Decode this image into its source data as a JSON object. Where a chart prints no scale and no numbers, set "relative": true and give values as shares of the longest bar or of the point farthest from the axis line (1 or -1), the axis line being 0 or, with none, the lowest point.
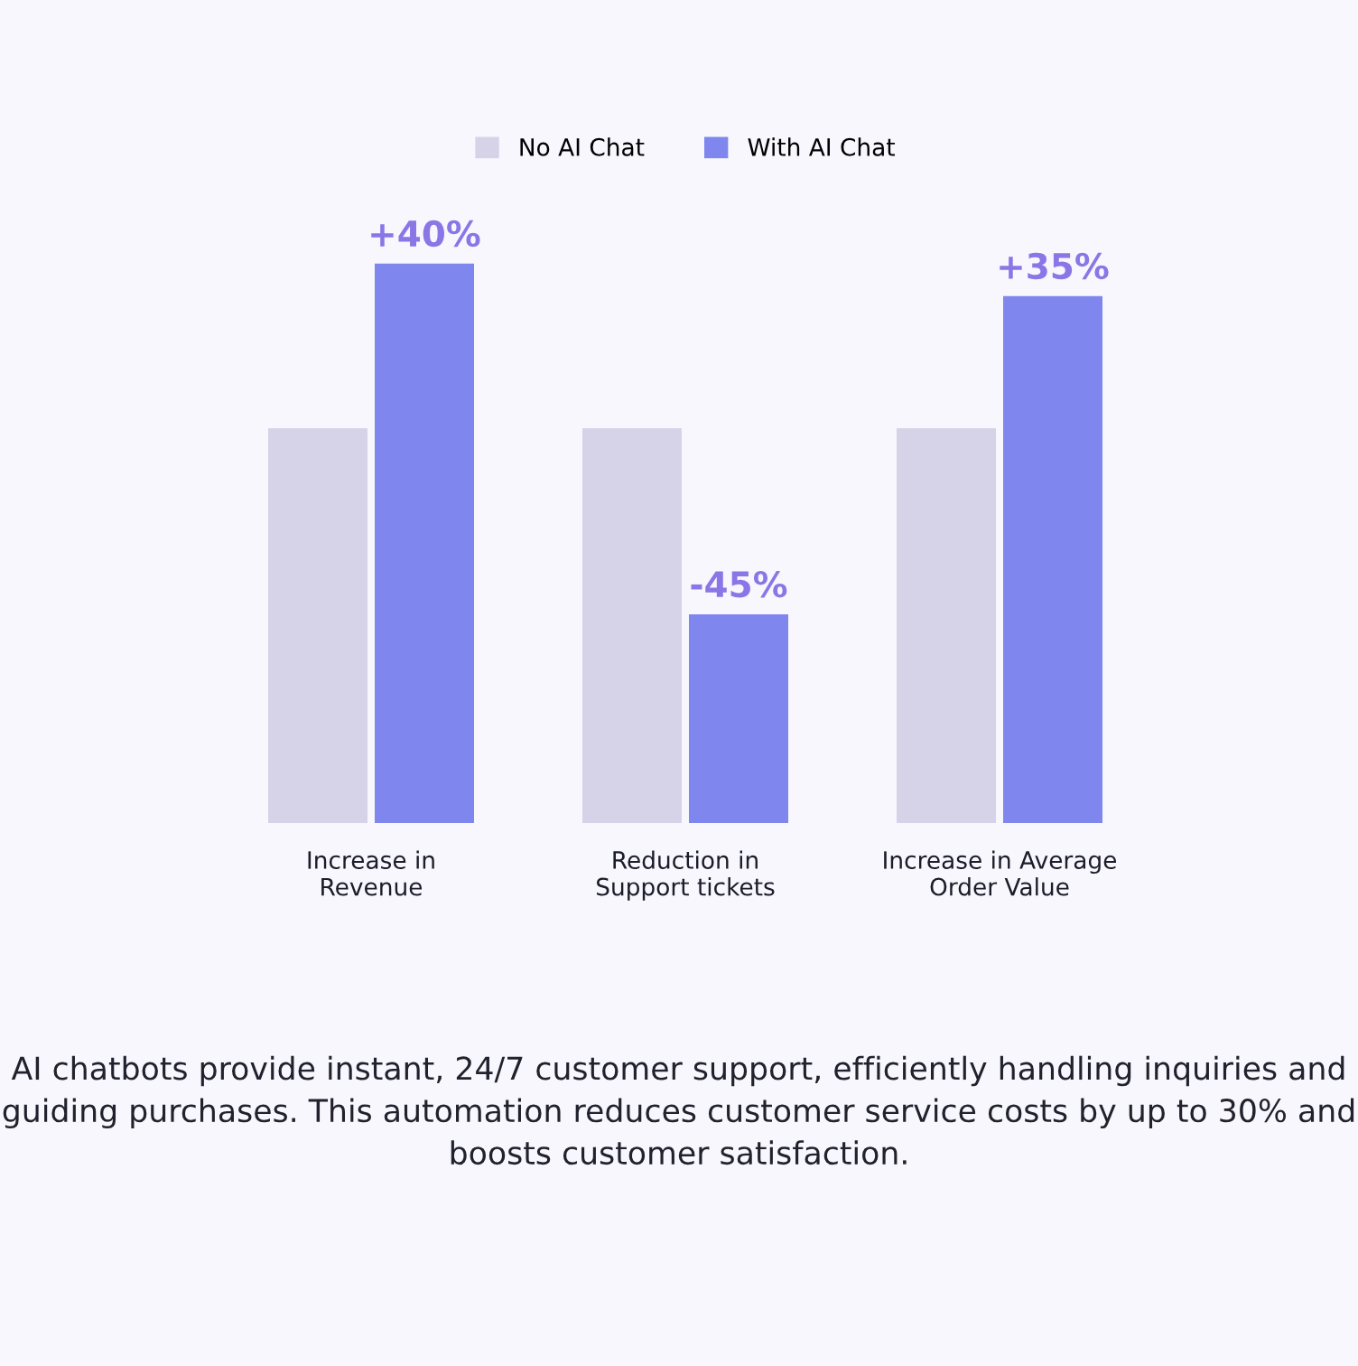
{
  "chart_data": {
    "type": "bar",
    "relative": true,
    "categories": [
      "Increase in\nRevenue",
      "Reduction in\nSupport tickets",
      "Increase in Average\nOrder Value"
    ],
    "series": [
      {
        "name": "No AI Chat",
        "color": "#d6d3e8",
        "values": [
          0.706,
          0.706,
          0.706
        ]
      },
      {
        "name": "With AI Chat",
        "color": "#7f86ee",
        "values": [
          1.0,
          0.373,
          0.942
        ]
      }
    ],
    "legend": "top",
    "annotations": [
      {
        "text": "+40%",
        "x": "Increase in\nRevenue",
        "y": 1.0
      },
      {
        "text": "-45%",
        "x": "Reduction in\nSupport tickets",
        "y": 0.373
      },
      {
        "text": "+35%",
        "x": "Increase in Average\nOrder Value",
        "y": 0.942
      },
      "AI chatbots provide instant, 24/7 customer support, efficiently handling inquiries and guiding purchases. This automation reduces customer service costs by up to 30% and boosts customer satisfaction."
    ]
  }
}
